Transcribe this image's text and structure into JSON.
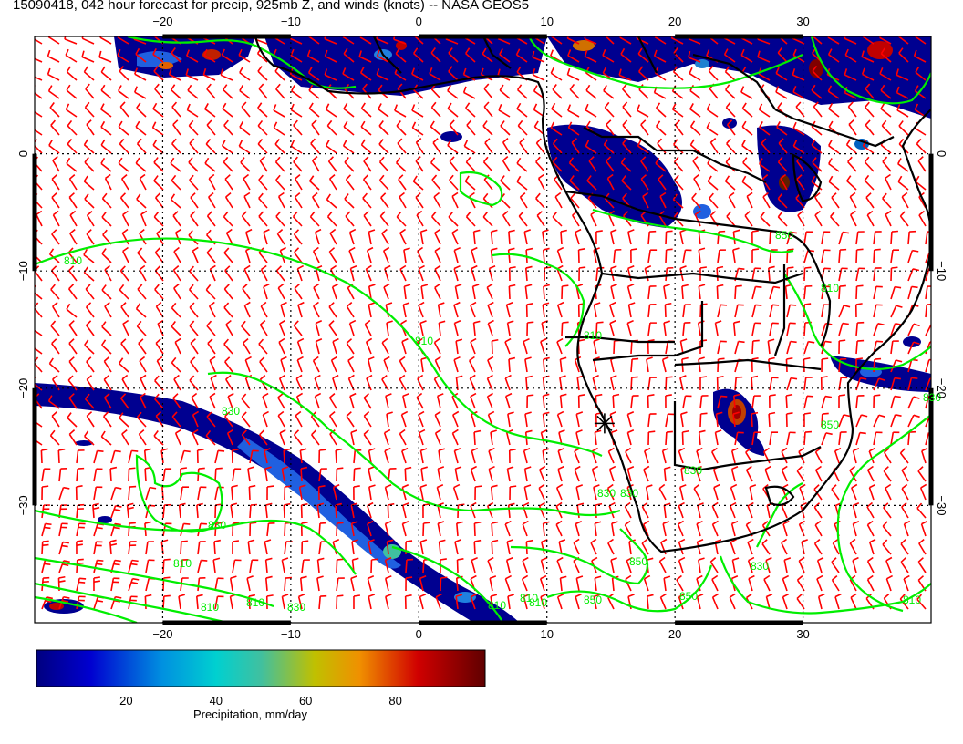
{
  "title": "15090418, 042 hour forecast for precip, 925mb Z, and winds (knots) -- NASA GEOS5",
  "map": {
    "lon_range": [
      -30,
      40
    ],
    "lat_range": [
      -40,
      10
    ],
    "lon_ticks": [
      -20,
      -10,
      0,
      10,
      20,
      30
    ],
    "lat_ticks": [
      0,
      -10,
      -20,
      -30
    ],
    "lon_tick_labels": [
      "−20",
      "−10",
      "0",
      "10",
      "20",
      "30"
    ],
    "lat_tick_labels": [
      "0",
      "−10",
      "−20",
      "−30"
    ],
    "contour_labels": [
      "810",
      "810",
      "830",
      "830",
      "810",
      "810",
      "810",
      "810",
      "850",
      "850",
      "830",
      "810",
      "810",
      "830",
      "850",
      "850",
      "810",
      "830",
      "810",
      "830",
      "850",
      "830",
      "830",
      "810"
    ],
    "marker": {
      "lon": 14.5,
      "lat": -23
    },
    "colors": {
      "wind_barbs": "#ff0000",
      "contours": "#00ee00",
      "coastlines": "#000000",
      "grid": "#000000"
    }
  },
  "colorbar": {
    "label": "Precipitation, mm/day",
    "ticks": [
      "20",
      "40",
      "60",
      "80"
    ],
    "tick_values": [
      20,
      40,
      60,
      80
    ],
    "range": [
      0,
      100
    ]
  }
}
